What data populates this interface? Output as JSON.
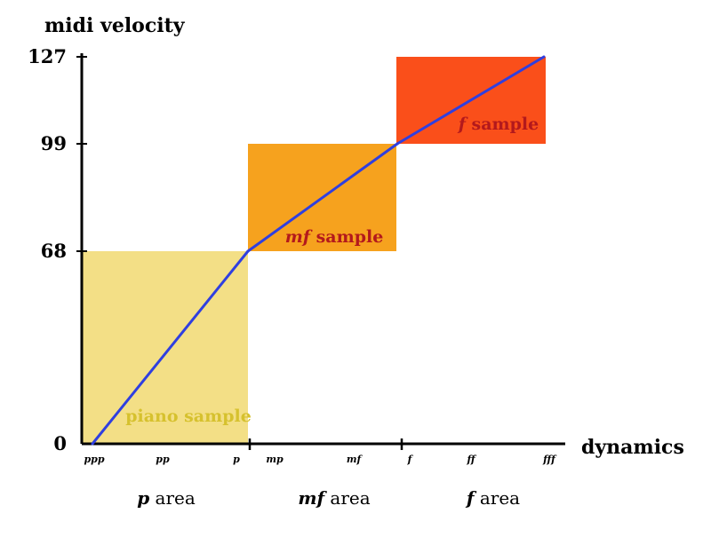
{
  "chart_data": {
    "type": "line",
    "ylabel": "midi velocity",
    "xlabel": "dynamics",
    "y_ticks": [
      {
        "value": 0,
        "label": "0"
      },
      {
        "value": 68,
        "label": "68"
      },
      {
        "value": 99,
        "label": "99"
      },
      {
        "value": 127,
        "label": "127"
      }
    ],
    "x_ticks": [
      "ppp",
      "pp",
      "p",
      "mp",
      "mf",
      "f",
      "ff",
      "fff"
    ],
    "areas": [
      {
        "italic": "p",
        "rest": " area"
      },
      {
        "italic": "mf",
        "rest": " area"
      },
      {
        "italic": "f",
        "rest": " area"
      }
    ],
    "samples": [
      {
        "italic": "",
        "rest": "piano sample",
        "color": "#f3df86",
        "text_color": "#d6c12e",
        "y_range": [
          0,
          68
        ]
      },
      {
        "italic": "mf",
        "rest": " sample",
        "color": "#f6a21e",
        "text_color": "#b3191c",
        "y_range": [
          68,
          99
        ]
      },
      {
        "italic": "f",
        "rest": "  sample",
        "color": "#fa4f1a",
        "text_color": "#b3191c",
        "y_range": [
          99,
          127
        ]
      }
    ],
    "series": [
      {
        "points": [
          {
            "x": "ppp",
            "y": 0
          },
          {
            "x": "p",
            "y": 68
          },
          {
            "x": "f",
            "y": 99
          },
          {
            "x": "fff",
            "y": 127
          }
        ],
        "color": "#2f3fe0"
      }
    ],
    "ylim": [
      0,
      127
    ]
  }
}
